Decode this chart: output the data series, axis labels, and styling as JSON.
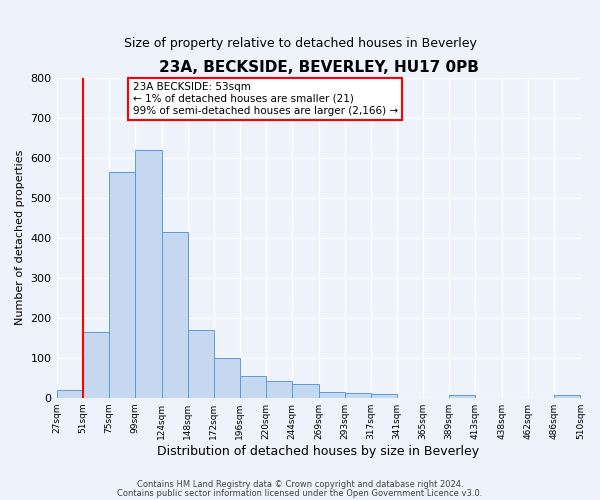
{
  "title": "23A, BECKSIDE, BEVERLEY, HU17 0PB",
  "subtitle": "Size of property relative to detached houses in Beverley",
  "xlabel": "Distribution of detached houses by size in Beverley",
  "ylabel": "Number of detached properties",
  "bar_left_edges": [
    27,
    51,
    75,
    99,
    124,
    148,
    172,
    196,
    220,
    244,
    269,
    293,
    317,
    341,
    365,
    389,
    413,
    438,
    462,
    486
  ],
  "bar_widths": [
    24,
    24,
    24,
    25,
    24,
    24,
    24,
    24,
    24,
    25,
    24,
    24,
    24,
    24,
    24,
    24,
    25,
    24,
    24,
    24
  ],
  "bar_heights": [
    20,
    165,
    563,
    620,
    413,
    170,
    100,
    53,
    43,
    35,
    15,
    12,
    10,
    0,
    0,
    8,
    0,
    0,
    0,
    7
  ],
  "bar_color": "#c5d8f0",
  "bar_edge_color": "#5b9bd5",
  "tick_labels": [
    "27sqm",
    "51sqm",
    "75sqm",
    "99sqm",
    "124sqm",
    "148sqm",
    "172sqm",
    "196sqm",
    "220sqm",
    "244sqm",
    "269sqm",
    "293sqm",
    "317sqm",
    "341sqm",
    "365sqm",
    "389sqm",
    "413sqm",
    "438sqm",
    "462sqm",
    "486sqm",
    "510sqm"
  ],
  "tick_positions": [
    27,
    51,
    75,
    99,
    124,
    148,
    172,
    196,
    220,
    244,
    269,
    293,
    317,
    341,
    365,
    389,
    413,
    438,
    462,
    486,
    510
  ],
  "ylim": [
    0,
    800
  ],
  "yticks": [
    0,
    100,
    200,
    300,
    400,
    500,
    600,
    700,
    800
  ],
  "red_line_x": 51,
  "annotation_title": "23A BECKSIDE: 53sqm",
  "annotation_line1": "← 1% of detached houses are smaller (21)",
  "annotation_line2": "99% of semi-detached houses are larger (2,166) →",
  "footer1": "Contains HM Land Registry data © Crown copyright and database right 2024.",
  "footer2": "Contains public sector information licensed under the Open Government Licence v3.0.",
  "background_color": "#eef2fb",
  "grid_color": "#ffffff",
  "xlim_left": 27,
  "xlim_right": 510
}
